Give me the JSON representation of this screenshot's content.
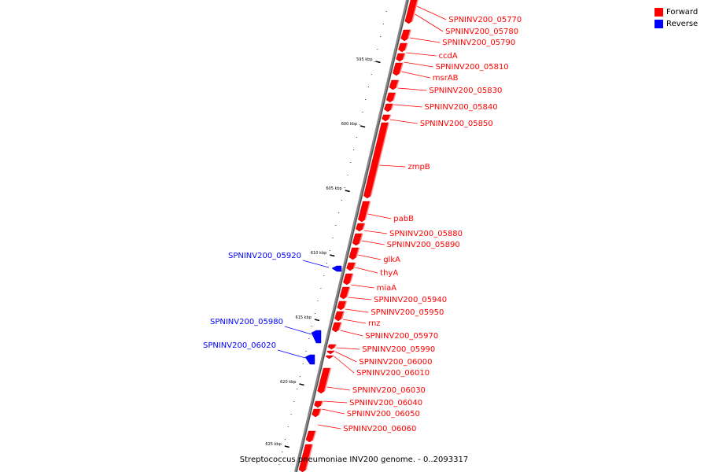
{
  "legend": {
    "forward_label": "Forward",
    "reverse_label": "Reverse",
    "forward_color": "#ff0000",
    "reverse_color": "#0000ff"
  },
  "caption": "Streptococcus pneumoniae INV200 genome. - 0..2093317",
  "tick_labels": [
    "595 kbp",
    "600 kbp",
    "605 kbp",
    "610 kbp",
    "615 kbp",
    "620 kbp",
    "625 kbp"
  ],
  "genes": [
    {
      "name": "SPNINV200_05770",
      "strand": "forward"
    },
    {
      "name": "SPNINV200_05780",
      "strand": "forward"
    },
    {
      "name": "SPNINV200_05790",
      "strand": "forward"
    },
    {
      "name": "ccdA",
      "strand": "forward"
    },
    {
      "name": "SPNINV200_05810",
      "strand": "forward"
    },
    {
      "name": "msrAB",
      "strand": "forward"
    },
    {
      "name": "SPNINV200_05830",
      "strand": "forward"
    },
    {
      "name": "SPNINV200_05840",
      "strand": "forward"
    },
    {
      "name": "SPNINV200_05850",
      "strand": "forward"
    },
    {
      "name": "zmpB",
      "strand": "forward"
    },
    {
      "name": "pabB",
      "strand": "forward"
    },
    {
      "name": "SPNINV200_05880",
      "strand": "forward"
    },
    {
      "name": "SPNINV200_05890",
      "strand": "forward"
    },
    {
      "name": "glkA",
      "strand": "forward"
    },
    {
      "name": "thyA",
      "strand": "forward"
    },
    {
      "name": "miaA",
      "strand": "forward"
    },
    {
      "name": "SPNINV200_05940",
      "strand": "forward"
    },
    {
      "name": "SPNINV200_05950",
      "strand": "forward"
    },
    {
      "name": "rnz",
      "strand": "forward"
    },
    {
      "name": "SPNINV200_05970",
      "strand": "forward"
    },
    {
      "name": "SPNINV200_05990",
      "strand": "forward"
    },
    {
      "name": "SPNINV200_06000",
      "strand": "forward"
    },
    {
      "name": "SPNINV200_06010",
      "strand": "forward"
    },
    {
      "name": "SPNINV200_06030",
      "strand": "forward"
    },
    {
      "name": "SPNINV200_06040",
      "strand": "forward"
    },
    {
      "name": "SPNINV200_06050",
      "strand": "forward"
    },
    {
      "name": "SPNINV200_06060",
      "strand": "forward"
    },
    {
      "name": "SPNINV200_05920",
      "strand": "reverse"
    },
    {
      "name": "SPNINV200_05980",
      "strand": "reverse"
    },
    {
      "name": "SPNINV200_06020",
      "strand": "reverse"
    }
  ]
}
